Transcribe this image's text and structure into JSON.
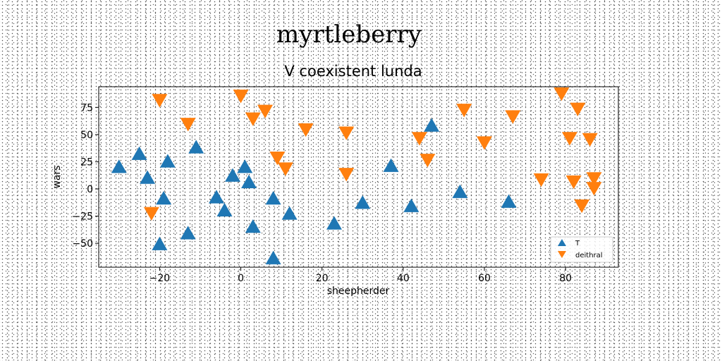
{
  "suptitle": "myrtleberry",
  "chart_data": {
    "type": "scatter",
    "title": "V coexistent lunda",
    "xlabel": "sheepherder",
    "ylabel": "wars",
    "xlim": [
      -35,
      93
    ],
    "ylim": [
      -72,
      94
    ],
    "xticks": [
      -20,
      0,
      20,
      40,
      60,
      80
    ],
    "yticks": [
      -50,
      -25,
      0,
      25,
      50,
      75
    ],
    "xtick_labels": [
      "−20",
      "0",
      "20",
      "40",
      "60",
      "80"
    ],
    "ytick_labels": [
      "−50",
      "−25",
      "0",
      "25",
      "50",
      "75"
    ],
    "grid": false,
    "legend_position": "lower right",
    "series": [
      {
        "name": "T",
        "marker": "triangle-up",
        "color": "#1f77b4",
        "x": [
          -30,
          -25,
          -23,
          -18,
          -19,
          -20,
          -13,
          -11,
          -6,
          -4,
          -2,
          1,
          2,
          3,
          8,
          8,
          12,
          23,
          30,
          37,
          42,
          47,
          54,
          66
        ],
        "y": [
          20,
          32,
          10,
          25,
          -9,
          -51,
          -41,
          38,
          -8,
          -20,
          12,
          20,
          6,
          -35,
          -9,
          -64,
          -23,
          -32,
          -13,
          21,
          -16,
          58,
          -3,
          -12
        ]
      },
      {
        "name": "deithral",
        "marker": "triangle-down",
        "color": "#ff7f0e",
        "x": [
          -20,
          -22,
          -13,
          0,
          3,
          6,
          9,
          11,
          16,
          26,
          26,
          44,
          46,
          55,
          60,
          67,
          74,
          79,
          81,
          82,
          83,
          84,
          86,
          87,
          87
        ],
        "y": [
          82,
          -22,
          60,
          86,
          65,
          72,
          29,
          19,
          55,
          52,
          14,
          47,
          27,
          73,
          43,
          67,
          9,
          88,
          47,
          7,
          74,
          -15,
          46,
          10,
          1
        ]
      }
    ]
  }
}
